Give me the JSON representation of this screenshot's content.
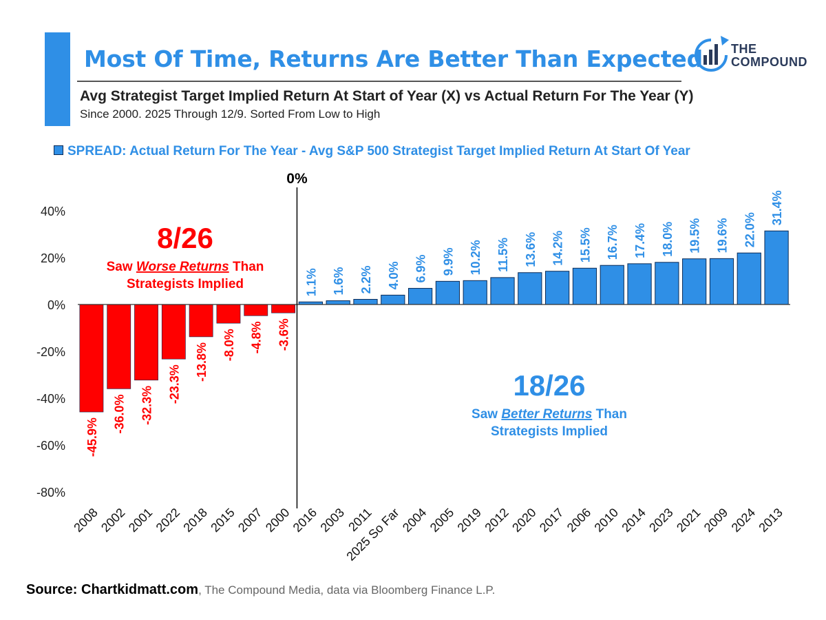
{
  "header": {
    "title": "Most Of Time, Returns Are Better Than Expected",
    "subtitle": "Avg Strategist Target Implied Return At Start of Year (X) vs Actual Return For The Year (Y)",
    "note": "Since 2000. 2025 Through 12/9. Sorted From Low to High"
  },
  "logo": {
    "line1": "THE",
    "line2": "COMPOUND",
    "icon": "bar-chart-refresh-icon"
  },
  "colors": {
    "accent": "#2f8fe6",
    "negative": "#ff0000",
    "positive": "#2f8fe6"
  },
  "chart_data": {
    "type": "bar",
    "legend": "SPREAD: Actual Return For The Year - Avg S&P 500 Strategist Target Implied Return At Start Of Year",
    "legend_position": "top",
    "categories": [
      "2008",
      "2002",
      "2001",
      "2022",
      "2018",
      "2015",
      "2007",
      "2000",
      "2016",
      "2003",
      "2011",
      "2025 So Far",
      "2004",
      "2005",
      "2019",
      "2012",
      "2020",
      "2017",
      "2006",
      "2010",
      "2014",
      "2023",
      "2021",
      "2009",
      "2024",
      "2013"
    ],
    "values": [
      -45.9,
      -36.0,
      -32.3,
      -23.3,
      -13.8,
      -8.0,
      -4.8,
      -3.6,
      1.1,
      1.6,
      2.2,
      4.0,
      6.9,
      9.9,
      10.2,
      11.5,
      13.6,
      14.2,
      15.5,
      16.7,
      17.4,
      18.0,
      19.5,
      19.6,
      22.0,
      31.4
    ],
    "data_labels": [
      "-45.9%",
      "-36.0%",
      "-32.3%",
      "-23.3%",
      "-13.8%",
      "-8.0%",
      "-4.8%",
      "-3.6%",
      "1.1%",
      "1.6%",
      "2.2%",
      "4.0%",
      "6.9%",
      "9.9%",
      "10.2%",
      "11.5%",
      "13.6%",
      "14.2%",
      "15.5%",
      "16.7%",
      "17.4%",
      "18.0%",
      "19.5%",
      "19.6%",
      "22.0%",
      "31.4%"
    ],
    "y_ticks": [
      "40%",
      "20%",
      "0%",
      "-20%",
      "-40%",
      "-60%",
      "-80%"
    ],
    "y_tick_values": [
      40,
      20,
      0,
      -20,
      -40,
      -60,
      -80
    ],
    "ylim": [
      -80,
      48
    ],
    "grid": false,
    "zero_marker_label": "0%",
    "annotations": {
      "negative": {
        "count": "8/26",
        "line1_pre": "Saw ",
        "line1_em": "Worse Returns",
        "line1_post": " Than",
        "line2": "Strategists Implied"
      },
      "positive": {
        "count": "18/26",
        "line1_pre": "Saw ",
        "line1_em": "Better Returns",
        "line1_post": " Than",
        "line2": "Strategists Implied"
      }
    }
  },
  "source": {
    "bold": "Source: Chartkidmatt.com",
    "rest": ", The Compound Media, data via Bloomberg Finance L.P."
  }
}
